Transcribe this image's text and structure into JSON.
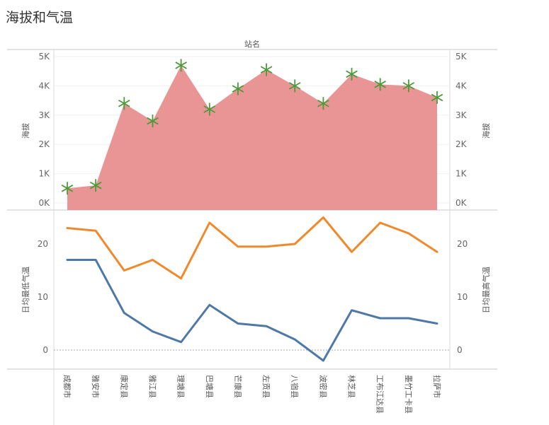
{
  "title": "海拔和气温",
  "chart_data": {
    "type": "combo",
    "column_header": "站名",
    "categories": [
      "成都市",
      "雅安市",
      "康定县",
      "雅江县",
      "理塘县",
      "巴塘县",
      "芒康县",
      "左贡县",
      "八宿县",
      "波密县",
      "林芝县",
      "工布江达县",
      "墨竹工卡县",
      "拉萨市"
    ],
    "top_panel": {
      "type": "area",
      "ylabel_left": "海拔",
      "ylabel_right": "海拔",
      "ylim": [
        0,
        5000
      ],
      "yticks": [
        0,
        1000,
        2000,
        3000,
        4000,
        5000
      ],
      "ytick_labels": [
        "0K",
        "1K",
        "2K",
        "3K",
        "4K",
        "5K"
      ],
      "series": [
        {
          "name": "海拔",
          "values": [
            500,
            600,
            3400,
            2800,
            4700,
            3200,
            3900,
            4550,
            4000,
            3400,
            4400,
            4050,
            4000,
            3600
          ]
        }
      ],
      "fill_color": "#e88a8a",
      "marker": "asterisk",
      "marker_color": "#4e9a3b"
    },
    "bottom_panel": {
      "type": "line",
      "ylabel_left": "日均最低气温",
      "ylabel_right": "日均最高气温",
      "ylim": [
        -2,
        25
      ],
      "yticks": [
        0,
        10,
        20
      ],
      "series": [
        {
          "name": "日均最高气温",
          "color": "#f0892b",
          "values": [
            23,
            22.5,
            15,
            17,
            13.5,
            24,
            19.5,
            19.5,
            20,
            25,
            18.5,
            24,
            22,
            18.5
          ]
        },
        {
          "name": "日均最低气温",
          "color": "#4e79a7",
          "values": [
            17,
            17,
            7,
            3.5,
            1.5,
            8.5,
            5,
            4.5,
            2,
            -2,
            7.5,
            6,
            6,
            5
          ]
        }
      ]
    }
  }
}
